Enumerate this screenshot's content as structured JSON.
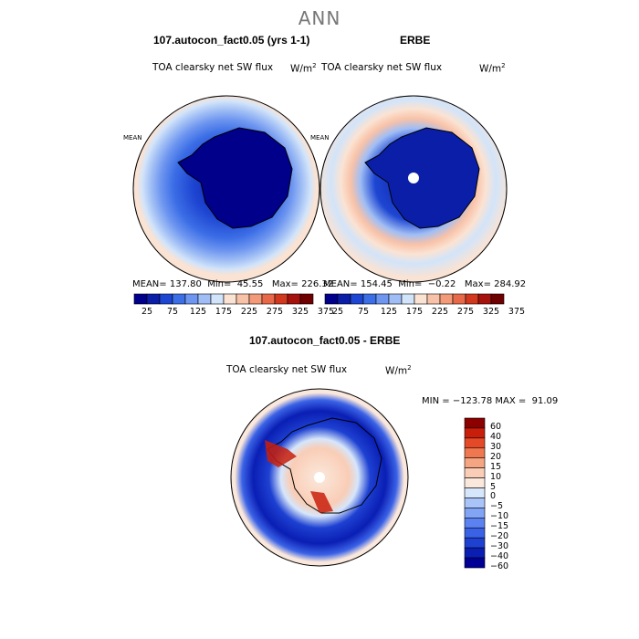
{
  "page": {
    "title": "ANN"
  },
  "panels": [
    {
      "title": "107.autocon_fact0.05 (yrs 1-1)",
      "field": "TOA clearsky net SW flux",
      "unit": "W/m",
      "unit_sup": "2",
      "stats": {
        "mean_label": "MEAN=",
        "mean": "137.80",
        "min_label": "Min=",
        "min": "45.55",
        "max_label": "Max=",
        "max": "226.32"
      }
    },
    {
      "title": "ERBE",
      "field": "TOA clearsky net SW flux",
      "unit": "W/m",
      "unit_sup": "2",
      "stats": {
        "mean_label": "MEAN=",
        "mean": "154.45",
        "min_label": "Min=",
        "min": "−0.22",
        "max_label": "Max=",
        "max": "284.92"
      }
    },
    {
      "title": "107.autocon_fact0.05 - ERBE",
      "field": "TOA clearsky net SW flux",
      "unit": "W/m",
      "unit_sup": "2",
      "stats": {
        "min_label": "MIN =",
        "min": "−123.78",
        "max_label": "MAX =",
        "max": "91.09"
      }
    }
  ],
  "colorbar_top": {
    "colors": [
      "#00008b",
      "#0a1ea8",
      "#1e46d2",
      "#3c6ee6",
      "#6e96f0",
      "#a0bef5",
      "#d2e4fa",
      "#fbe3d3",
      "#f8c2a8",
      "#f39a78",
      "#e8694a",
      "#d2381e",
      "#a6120c",
      "#6e0000"
    ],
    "tick_labels": [
      "25",
      "75",
      "125",
      "175",
      "225",
      "275",
      "325",
      "375"
    ]
  },
  "colorbar_diff": {
    "colors": [
      "#000096",
      "#0a1eb4",
      "#1e41d2",
      "#3a62e6",
      "#5a82f0",
      "#82a4f5",
      "#a8c4f8",
      "#d6e6fb",
      "#fbe8dc",
      "#f9cdb6",
      "#f5a582",
      "#f07850",
      "#e44a28",
      "#c81e0a",
      "#8c0000"
    ],
    "tick_labels": [
      "60",
      "40",
      "30",
      "20",
      "15",
      "10",
      "5",
      "0",
      "−5",
      "−10",
      "−15",
      "−20",
      "−30",
      "−40",
      "−60"
    ]
  }
}
